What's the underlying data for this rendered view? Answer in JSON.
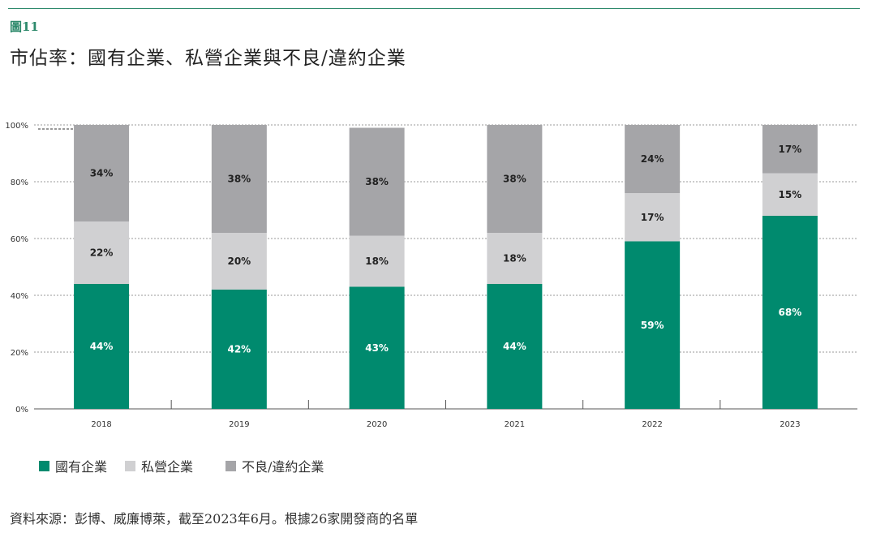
{
  "figure_label": "圖11",
  "title": "市佔率：國有企業、私營企業與不良/違約企業",
  "source": "資料來源：彭博、威廉博萊，截至2023年6月。根據26家開發商的名單",
  "colors": {
    "soe": "#008a6e",
    "private": "#d0d0d2",
    "distressed": "#a5a5a8"
  },
  "chart_data": {
    "type": "bar",
    "stacked": true,
    "categories": [
      "2018",
      "2019",
      "2020",
      "2021",
      "2022",
      "2023"
    ],
    "series": [
      {
        "name": "國有企業",
        "values": [
          44,
          42,
          43,
          44,
          59,
          68
        ],
        "labels": [
          "44%",
          "42%",
          "43%",
          "44%",
          "59%",
          "68%"
        ]
      },
      {
        "name": "私營企業",
        "values": [
          22,
          20,
          18,
          18,
          17,
          15
        ],
        "labels": [
          "22%",
          "20%",
          "18%",
          "18%",
          "17%",
          "15%"
        ]
      },
      {
        "name": "不良/違約企業",
        "values": [
          34,
          38,
          38,
          38,
          24,
          17
        ],
        "labels": [
          "34%",
          "38%",
          "38%",
          "38%",
          "24%",
          "17%"
        ]
      }
    ],
    "ylim": [
      0,
      100
    ],
    "yticks": [
      "0%",
      "20%",
      "40%",
      "60%",
      "80%",
      "100%"
    ],
    "grid": true,
    "legend_position": "bottom-left"
  }
}
